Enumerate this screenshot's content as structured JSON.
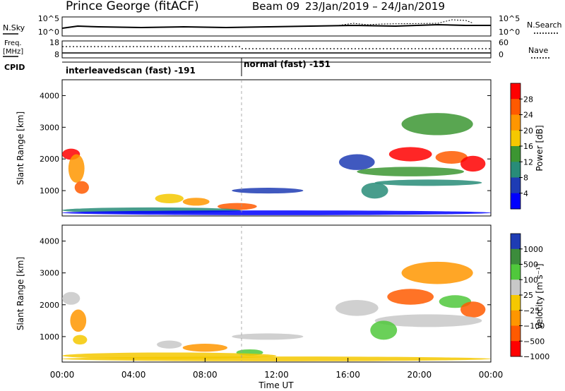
{
  "header": {
    "station": "Prince George (fitACF)",
    "beam": "Beam 09",
    "date_range": "23/Jan/2019 – 24/Jan/2019"
  },
  "small_panels": {
    "nsky_label": "N.Sky",
    "nsearch_label": "N.Search",
    "nsky_ticks": [
      "10^5",
      "10^0"
    ],
    "nsearch_ticks": [
      "10^5",
      "10^0"
    ],
    "freq_label": "Freq.",
    "freq_unit": "[MHz]",
    "freq_ticks": [
      "18",
      "8"
    ],
    "nave_label": "Nave",
    "nave_ticks": [
      "60",
      "0"
    ],
    "cpid_label": "CPID",
    "cpid_segments": [
      {
        "label": "interleavedscan (fast) -191",
        "start_hour": 0,
        "end_hour": 10
      },
      {
        "label": "normal (fast) -151",
        "start_hour": 10,
        "end_hour": 24
      }
    ]
  },
  "chart_data": [
    {
      "type": "heatmap",
      "ylabel": "Slant Range [km]",
      "xlim": [
        0,
        24
      ],
      "ylim": [
        200,
        4500
      ],
      "y_ticks": [
        1000,
        2000,
        3000,
        4000
      ],
      "colorbar": {
        "label": "Power [dB]",
        "ticks": [
          "28",
          "24",
          "20",
          "16",
          "12",
          "8",
          "4"
        ],
        "colors": [
          "#ff0000",
          "#ff5a00",
          "#ff9600",
          "#f5c800",
          "#3c9632",
          "#288c78",
          "#1e3cb4",
          "#0000ff"
        ]
      },
      "regions": [
        {
          "t": 0.5,
          "r": 2150,
          "w": 1.0,
          "h": 350,
          "level": 0
        },
        {
          "t": 0.8,
          "r": 1700,
          "w": 0.9,
          "h": 900,
          "level": 2
        },
        {
          "t": 1.1,
          "r": 1100,
          "w": 0.8,
          "h": 400,
          "level": 1
        },
        {
          "t": 6.0,
          "r": 750,
          "w": 1.6,
          "h": 300,
          "level": 3
        },
        {
          "t": 7.5,
          "r": 650,
          "w": 1.5,
          "h": 250,
          "level": 2
        },
        {
          "t": 9.8,
          "r": 500,
          "w": 2.2,
          "h": 220,
          "level": 1
        },
        {
          "t": 5.0,
          "r": 380,
          "w": 10.0,
          "h": 180,
          "level": 5
        },
        {
          "t": 11.5,
          "r": 1000,
          "w": 4.0,
          "h": 180,
          "level": 6
        },
        {
          "t": 16.5,
          "r": 1900,
          "w": 2.0,
          "h": 500,
          "level": 6
        },
        {
          "t": 19.5,
          "r": 2150,
          "w": 2.4,
          "h": 450,
          "level": 0
        },
        {
          "t": 21.8,
          "r": 2050,
          "w": 1.8,
          "h": 400,
          "level": 1
        },
        {
          "t": 23.0,
          "r": 1850,
          "w": 1.4,
          "h": 500,
          "level": 0
        },
        {
          "t": 19.5,
          "r": 1600,
          "w": 6.0,
          "h": 300,
          "level": 4
        },
        {
          "t": 20.5,
          "r": 1250,
          "w": 6.0,
          "h": 200,
          "level": 5
        },
        {
          "t": 21.0,
          "r": 3100,
          "w": 4.0,
          "h": 700,
          "level": 4
        },
        {
          "t": 17.5,
          "r": 1000,
          "w": 1.5,
          "h": 500,
          "level": 5
        },
        {
          "t": 12.0,
          "r": 300,
          "w": 24.0,
          "h": 150,
          "level": 7
        }
      ]
    },
    {
      "type": "heatmap",
      "ylabel": "Slant Range [km]",
      "xlabel": "Time UT",
      "xlim": [
        0,
        24
      ],
      "ylim": [
        200,
        4500
      ],
      "y_ticks": [
        1000,
        2000,
        3000,
        4000
      ],
      "x_ticks": [
        "00:00",
        "04:00",
        "08:00",
        "12:00",
        "16:00",
        "20:00",
        "00:00"
      ],
      "colorbar": {
        "label": "Velocity [m s⁻¹]",
        "ticks": [
          "1000",
          "500",
          "100",
          "25",
          "−25",
          "−100",
          "−500",
          "−1000"
        ],
        "colors": [
          "#1e3cb4",
          "#3c8c3c",
          "#50c83c",
          "#c8c8c8",
          "#f5c800",
          "#ff9600",
          "#ff5a00",
          "#ff0000"
        ]
      },
      "regions": [
        {
          "t": 0.5,
          "r": 2200,
          "w": 1.0,
          "h": 400,
          "level": 3
        },
        {
          "t": 0.9,
          "r": 1500,
          "w": 0.9,
          "h": 700,
          "level": 5
        },
        {
          "t": 1.0,
          "r": 900,
          "w": 0.8,
          "h": 300,
          "level": 4
        },
        {
          "t": 6.0,
          "r": 750,
          "w": 1.4,
          "h": 250,
          "level": 3
        },
        {
          "t": 8.0,
          "r": 650,
          "w": 2.5,
          "h": 250,
          "level": 5
        },
        {
          "t": 10.5,
          "r": 500,
          "w": 1.5,
          "h": 200,
          "level": 2
        },
        {
          "t": 11.5,
          "r": 1000,
          "w": 4.0,
          "h": 200,
          "level": 3
        },
        {
          "t": 6.0,
          "r": 400,
          "w": 12.0,
          "h": 200,
          "level": 4
        },
        {
          "t": 16.5,
          "r": 1900,
          "w": 2.4,
          "h": 500,
          "level": 3
        },
        {
          "t": 19.5,
          "r": 2250,
          "w": 2.6,
          "h": 500,
          "level": 6
        },
        {
          "t": 22.0,
          "r": 2100,
          "w": 1.8,
          "h": 400,
          "level": 2
        },
        {
          "t": 23.0,
          "r": 1850,
          "w": 1.4,
          "h": 500,
          "level": 6
        },
        {
          "t": 20.5,
          "r": 1500,
          "w": 6.0,
          "h": 400,
          "level": 3
        },
        {
          "t": 18.0,
          "r": 1200,
          "w": 1.5,
          "h": 600,
          "level": 2
        },
        {
          "t": 21.0,
          "r": 3000,
          "w": 4.0,
          "h": 700,
          "level": 5
        },
        {
          "t": 12.0,
          "r": 300,
          "w": 24.0,
          "h": 150,
          "level": 4
        }
      ]
    }
  ]
}
